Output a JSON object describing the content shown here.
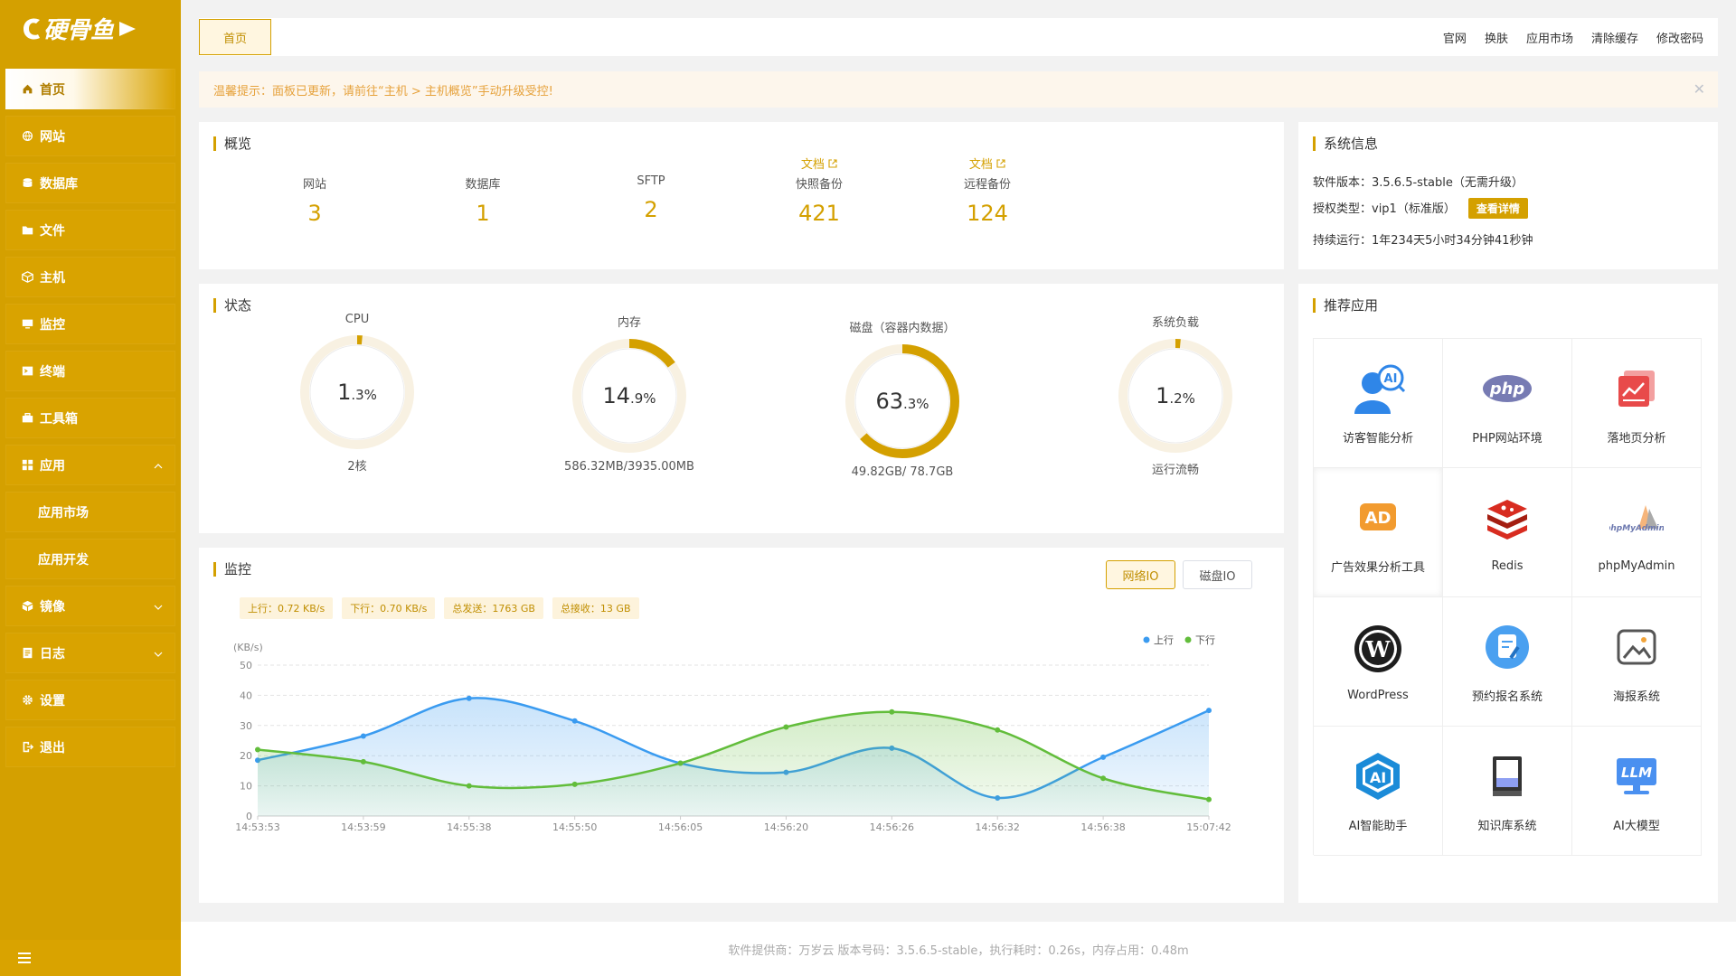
{
  "brand": {
    "logo_text": "硬骨鱼"
  },
  "sidebar": {
    "items": [
      {
        "label": "首页",
        "icon": "home-icon",
        "active": true
      },
      {
        "label": "网站",
        "icon": "globe-icon"
      },
      {
        "label": "数据库",
        "icon": "database-icon"
      },
      {
        "label": "文件",
        "icon": "folder-icon"
      },
      {
        "label": "主机",
        "icon": "cube-icon"
      },
      {
        "label": "监控",
        "icon": "monitor-icon"
      },
      {
        "label": "终端",
        "icon": "terminal-icon"
      },
      {
        "label": "工具箱",
        "icon": "toolbox-icon"
      },
      {
        "label": "应用",
        "icon": "grid-icon",
        "expanded": true
      },
      {
        "label": "应用市场",
        "sub": true
      },
      {
        "label": "应用开发",
        "sub": true
      },
      {
        "label": "镜像",
        "icon": "box-icon"
      },
      {
        "label": "日志",
        "icon": "log-icon"
      },
      {
        "label": "设置",
        "icon": "gear-icon"
      },
      {
        "label": "退出",
        "icon": "logout-icon"
      }
    ]
  },
  "topbar": {
    "home_tab": "首页",
    "links": [
      "官网",
      "换肤",
      "应用市场",
      "清除缓存",
      "修改密码"
    ]
  },
  "notice": {
    "text": "温馨提示：面板已更新，请前往“主机 > 主机概览”手动升级受控!"
  },
  "overview": {
    "title": "概览",
    "items": [
      {
        "label": "网站",
        "value": "3",
        "doc": ""
      },
      {
        "label": "数据库",
        "value": "1",
        "doc": ""
      },
      {
        "label": "SFTP",
        "value": "2",
        "doc": ""
      },
      {
        "label": "快照备份",
        "value": "421",
        "doc": "文档"
      },
      {
        "label": "远程备份",
        "value": "124",
        "doc": "文档"
      }
    ]
  },
  "status": {
    "title": "状态",
    "gauges": [
      {
        "label": "CPU",
        "int": "1",
        "dec": ".3",
        "pct": 1.3,
        "sub": "2核"
      },
      {
        "label": "内存",
        "int": "14",
        "dec": ".9",
        "pct": 14.9,
        "sub": "586.32MB/3935.00MB"
      },
      {
        "label": "磁盘（容器内数据）",
        "int": "63",
        "dec": ".3",
        "pct": 63.3,
        "sub": "49.82GB/ 78.7GB"
      },
      {
        "label": "系统负载",
        "int": "1",
        "dec": ".2",
        "pct": 1.2,
        "sub": "运行流畅"
      }
    ]
  },
  "monitor": {
    "title": "监控",
    "tabs": [
      "网络IO",
      "磁盘IO"
    ],
    "tags": [
      "上行：0.72 KB/s",
      "下行：0.70 KB/s",
      "总发送：1763 GB",
      "总接收：13 GB"
    ]
  },
  "chart_data": {
    "type": "area",
    "ylabel": "(KB/s)",
    "ylim": [
      0,
      50
    ],
    "yticks": [
      0,
      10,
      20,
      30,
      40,
      50
    ],
    "categories": [
      "14:53:53",
      "14:53:59",
      "14:55:38",
      "14:55:50",
      "14:56:05",
      "14:56:20",
      "14:56:26",
      "14:56:32",
      "14:56:38",
      "15:07:42"
    ],
    "legend_position": "top-right",
    "series": [
      {
        "name": "上行",
        "color": "#3a9bf0",
        "values": [
          18.5,
          26.5,
          39,
          31.5,
          17.5,
          14.5,
          22.5,
          6,
          19.5,
          35
        ]
      },
      {
        "name": "下行",
        "color": "#62bd3b",
        "values": [
          22,
          18,
          10,
          10.5,
          17.5,
          29.5,
          34.5,
          28.5,
          12.5,
          5.5
        ]
      }
    ]
  },
  "sysinfo": {
    "title": "系统信息",
    "version": "软件版本：3.5.6.5-stable（无需升级）",
    "license": "授权类型：vip1（标准版）",
    "detail_btn": "查看详情",
    "uptime": "持续运行：1年234天5小时34分钟41秒钟"
  },
  "apps": {
    "title": "推荐应用",
    "items": [
      {
        "name": "访客智能分析",
        "icon": "visitor-ai-icon"
      },
      {
        "name": "PHP网站环境",
        "icon": "php-icon"
      },
      {
        "name": "落地页分析",
        "icon": "chart-card-icon"
      },
      {
        "name": "广告效果分析工具",
        "icon": "ad-icon"
      },
      {
        "name": "Redis",
        "icon": "redis-icon"
      },
      {
        "name": "phpMyAdmin",
        "icon": "phpmyadmin-icon"
      },
      {
        "name": "WordPress",
        "icon": "wordpress-icon"
      },
      {
        "name": "预约报名系统",
        "icon": "booking-icon"
      },
      {
        "name": "海报系统",
        "icon": "poster-icon"
      },
      {
        "name": "AI智能助手",
        "icon": "ai-assistant-icon"
      },
      {
        "name": "知识库系统",
        "icon": "book-icon"
      },
      {
        "name": "AI大模型",
        "icon": "llm-icon"
      }
    ]
  },
  "footer": {
    "text": "软件提供商：万岁云   版本号码：3.5.6.5-stable，执行耗时：0.26s，内存占用：0.48m"
  }
}
